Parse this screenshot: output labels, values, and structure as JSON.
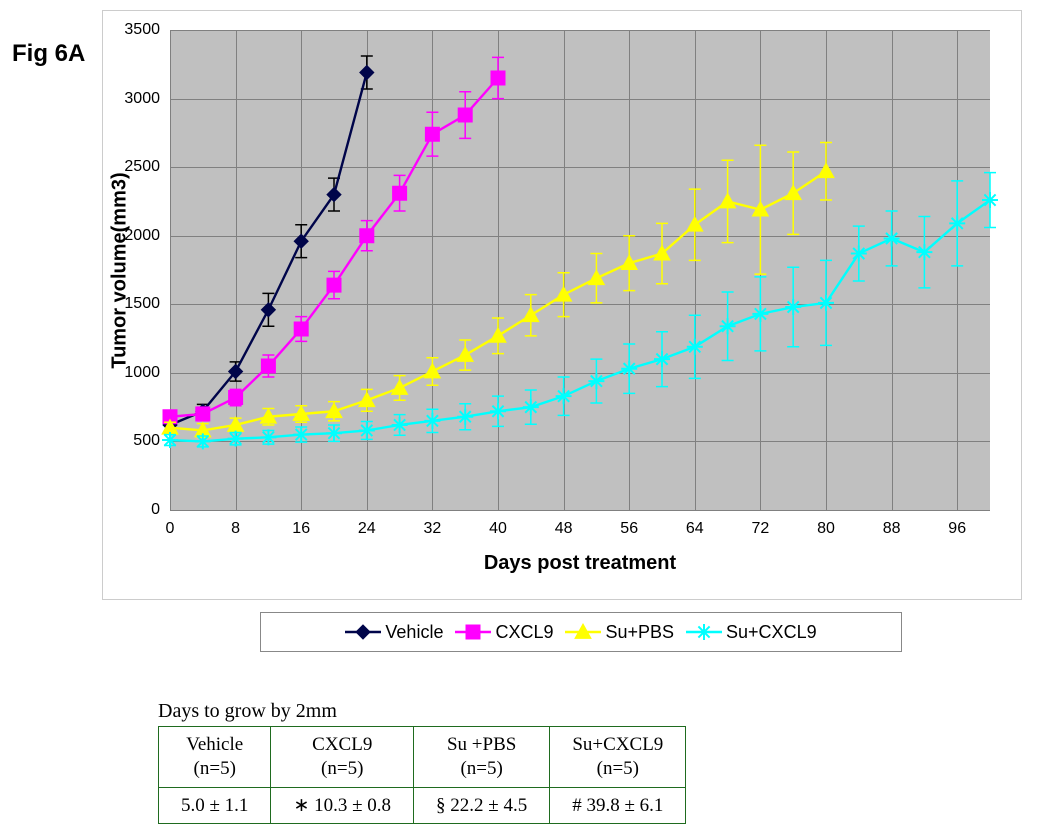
{
  "figure_label": "Fig 6A",
  "chart": {
    "type": "line",
    "plot_bg": "#c0c0c0",
    "axis_color": "#000000",
    "grid_color": "#808080",
    "xlabel": "Days post treatment",
    "ylabel": "Tumor volume(mm3)",
    "label_fontsize": 20,
    "tick_fontsize": 16,
    "xlim": [
      0,
      100
    ],
    "ylim": [
      0,
      3500
    ],
    "xtick_step": 8,
    "ytick_step": 500,
    "error_cap_width": 6,
    "series": [
      {
        "name": "Vehicle",
        "color": "#00054a",
        "marker": "diamond",
        "marker_size": 7,
        "line_width": 2.4,
        "error_color": "#000000",
        "x": [
          0,
          4,
          8,
          12,
          16,
          20,
          24
        ],
        "y": [
          620,
          720,
          1010,
          1460,
          1960,
          2300,
          3190
        ],
        "err": [
          40,
          50,
          70,
          120,
          120,
          120,
          120
        ]
      },
      {
        "name": "CXCL9",
        "color": "#ff00ff",
        "marker": "square",
        "marker_size": 7,
        "line_width": 2.4,
        "error_color": "#ff00ff",
        "x": [
          0,
          4,
          8,
          12,
          16,
          20,
          24,
          28,
          32,
          36,
          40
        ],
        "y": [
          680,
          700,
          820,
          1050,
          1320,
          1640,
          2000,
          2310,
          2740,
          2880,
          3150
        ],
        "err": [
          40,
          50,
          60,
          80,
          90,
          100,
          110,
          130,
          160,
          170,
          150
        ]
      },
      {
        "name": "Su+PBS",
        "color": "#ffff00",
        "marker": "triangle",
        "marker_size": 8,
        "line_width": 2.4,
        "error_color": "#ffff00",
        "x": [
          0,
          4,
          8,
          12,
          16,
          20,
          24,
          28,
          32,
          36,
          40,
          44,
          48,
          52,
          56,
          60,
          64,
          68,
          72,
          76,
          80
        ],
        "y": [
          600,
          580,
          620,
          680,
          700,
          720,
          800,
          890,
          1010,
          1130,
          1270,
          1420,
          1570,
          1690,
          1800,
          1870,
          2080,
          2250,
          2190,
          2310,
          2470
        ],
        "err": [
          40,
          50,
          50,
          60,
          60,
          70,
          80,
          90,
          100,
          110,
          130,
          150,
          160,
          180,
          200,
          220,
          260,
          300,
          470,
          300,
          210
        ]
      },
      {
        "name": "Su+CXCL9",
        "color": "#00ffff",
        "marker": "star",
        "marker_size": 8,
        "line_width": 2.4,
        "error_color": "#00ffff",
        "x": [
          0,
          4,
          8,
          12,
          16,
          20,
          24,
          28,
          32,
          36,
          40,
          44,
          48,
          52,
          56,
          60,
          64,
          68,
          72,
          76,
          80,
          84,
          88,
          92,
          96,
          100
        ],
        "y": [
          510,
          500,
          520,
          530,
          550,
          560,
          580,
          620,
          650,
          680,
          720,
          750,
          830,
          940,
          1030,
          1100,
          1190,
          1340,
          1430,
          1480,
          1510,
          1870,
          1980,
          1880,
          2090,
          2260
        ],
        "err": [
          40,
          40,
          45,
          50,
          55,
          60,
          65,
          75,
          85,
          95,
          110,
          125,
          140,
          160,
          180,
          200,
          230,
          250,
          270,
          290,
          310,
          200,
          200,
          260,
          310,
          200
        ]
      }
    ]
  },
  "legend": {
    "items": [
      "Vehicle",
      "CXCL9",
      "Su+PBS",
      "Su+CXCL9"
    ]
  },
  "table": {
    "caption": "Days to grow by 2mm",
    "border_color": "#1f6b1f",
    "columns": [
      {
        "header": "Vehicle",
        "n": "(n=5)",
        "value": "5.0 ± 1.1",
        "prefix": ""
      },
      {
        "header": "CXCL9",
        "n": "(n=5)",
        "value": "10.3 ± 0.8",
        "prefix": "∗ "
      },
      {
        "header": "Su +PBS",
        "n": "(n=5)",
        "value": "22.2 ± 4.5",
        "prefix": "§ "
      },
      {
        "header": "Su+CXCL9",
        "n": "(n=5)",
        "value": "39.8 ± 6.1",
        "prefix": "# "
      }
    ]
  }
}
